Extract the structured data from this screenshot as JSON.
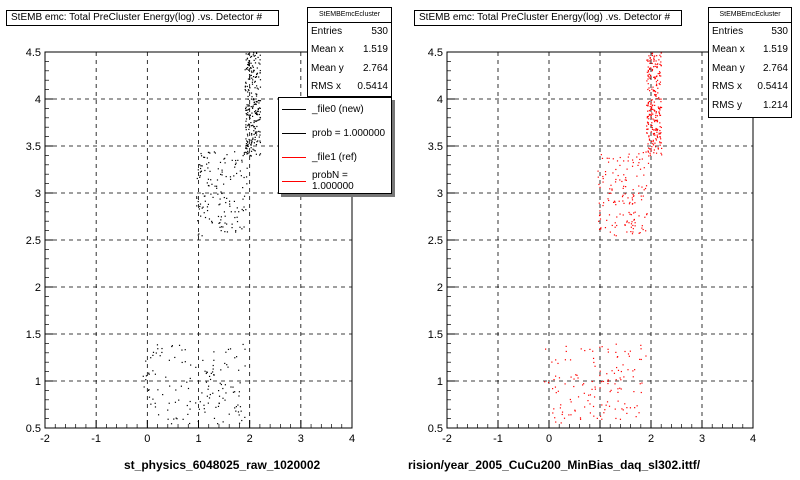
{
  "chart_data": [
    {
      "type": "scatter",
      "title": "StEMB emc: Total PreCluster Energy(log) .vs. Detector #",
      "xlabel": "st_physics_6048025_raw_1020002",
      "ylabel": "",
      "xlim": [
        -2,
        4
      ],
      "ylim": [
        0.5,
        4.5
      ],
      "x_ticks": [
        "-2",
        "-1",
        "0",
        "1",
        "2",
        "3",
        "4"
      ],
      "y_ticks": [
        "0.5",
        "1",
        "1.5",
        "2",
        "2.5",
        "3",
        "3.5",
        "4",
        "4.5"
      ],
      "grid": true,
      "stats": {
        "name": "StEMBEmcEcluster",
        "rows": [
          {
            "label": "Entries",
            "value": "530"
          },
          {
            "label": "Mean x",
            "value": "1.519"
          },
          {
            "label": "Mean y",
            "value": "2.764"
          },
          {
            "label": "RMS x",
            "value": "0.5414"
          }
        ]
      },
      "legend": {
        "placement": "top-right",
        "entries": [
          {
            "label": "_file0 (new)",
            "color": "#000000"
          },
          {
            "label": "prob = 1.000000",
            "color": "#000000"
          },
          {
            "label": "_file1 (ref)",
            "color": "#ff0000"
          },
          {
            "label": "probN = 1.000000",
            "color": "#ff0000"
          }
        ]
      },
      "series": [
        {
          "color": "#000000",
          "clusters": [
            {
              "x": [
                -0.1,
                1.9
              ],
              "y": [
                0.55,
                1.4
              ],
              "count": 140
            },
            {
              "x": [
                0.95,
                1.95
              ],
              "y": [
                2.55,
                3.45
              ],
              "count": 150
            },
            {
              "x": [
                1.9,
                2.2
              ],
              "y": [
                3.4,
                4.5
              ],
              "count": 240
            }
          ]
        }
      ]
    },
    {
      "type": "scatter",
      "title": "StEMB emc: Total PreCluster Energy(log) .vs. Detector #",
      "xlabel": "rision/year_2005_CuCu200_MinBias_daq_sl302.ittf/",
      "ylabel": "",
      "xlim": [
        -2,
        4
      ],
      "ylim": [
        0.5,
        4.5
      ],
      "x_ticks": [
        "-2",
        "-1",
        "0",
        "1",
        "2",
        "3",
        "4"
      ],
      "y_ticks": [
        "0.5",
        "1",
        "1.5",
        "2",
        "2.5",
        "3",
        "3.5",
        "4",
        "4.5"
      ],
      "grid": true,
      "stats": {
        "name": "StEMBEmcEcluster",
        "rows": [
          {
            "label": "Entries",
            "value": "530"
          },
          {
            "label": "Mean x",
            "value": "1.519"
          },
          {
            "label": "Mean y",
            "value": "2.764"
          },
          {
            "label": "RMS x",
            "value": "0.5414"
          },
          {
            "label": "RMS y",
            "value": "1.214"
          }
        ]
      },
      "series": [
        {
          "color": "#ff0000",
          "clusters": [
            {
              "x": [
                -0.1,
                1.9
              ],
              "y": [
                0.55,
                1.4
              ],
              "count": 140
            },
            {
              "x": [
                0.95,
                1.95
              ],
              "y": [
                2.55,
                3.45
              ],
              "count": 150
            },
            {
              "x": [
                1.9,
                2.2
              ],
              "y": [
                3.4,
                4.5
              ],
              "count": 240
            }
          ]
        }
      ]
    }
  ]
}
